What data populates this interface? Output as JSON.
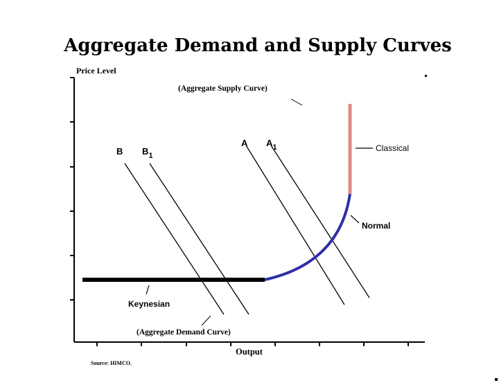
{
  "title": "Aggregate Demand and Supply Curves",
  "y_axis_label": "Price Level",
  "x_axis_label": "Output",
  "source": "Source: HIMCO.",
  "annotations": {
    "aggregate_supply": "(Aggregate Supply Curve)",
    "aggregate_demand": "(Aggregate Demand Curve)",
    "classical": "Classical",
    "normal": "Normal",
    "keynesian": "Keynesian"
  },
  "curve_labels": {
    "b": "B",
    "b1_main": "B",
    "b1_sub": "1",
    "a": "A",
    "a1_main": "A",
    "a1_sub": "1"
  },
  "colors": {
    "keynesian": "#000000",
    "normal": "#2e2ea8",
    "classical": "#e48a8a",
    "demand_lines": "#000000"
  }
}
